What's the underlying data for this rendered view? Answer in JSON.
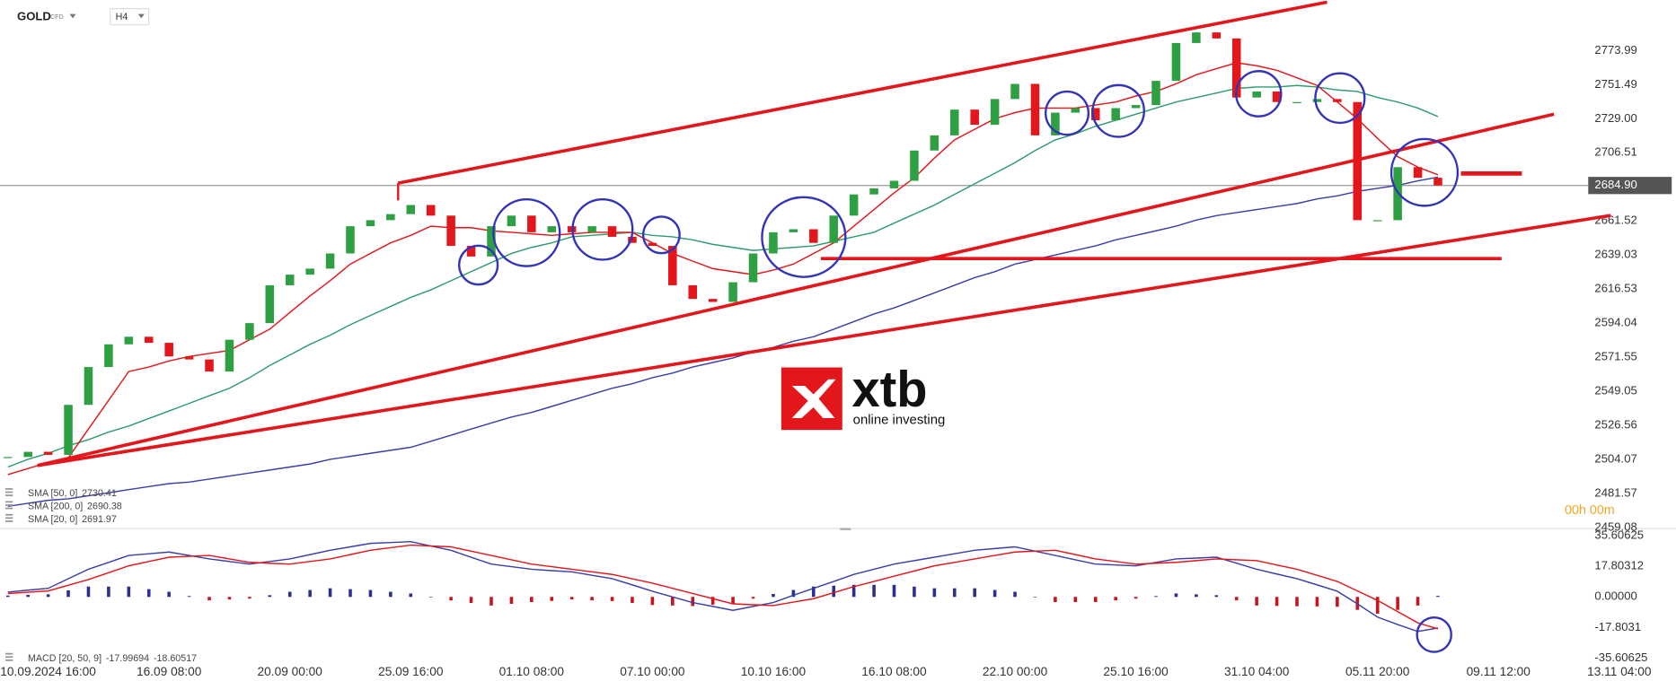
{
  "header": {
    "symbol": "GOLD",
    "instrument_type": "CFD",
    "timeframe": "H4"
  },
  "logo": {
    "brand": "xtb",
    "tagline": "online investing"
  },
  "countdown": "00h 00m",
  "chart_data": {
    "type": "candlestick",
    "up_color": "#2ea043",
    "down_color": "#e3161b",
    "categories": [
      null,
      null,
      "10.09.2024 16:00",
      null,
      null,
      null,
      null,
      null,
      "16.09 08:00",
      null,
      null,
      null,
      null,
      null,
      "20.09 00:00",
      null,
      null,
      null,
      null,
      null,
      "25.09 16:00",
      null,
      null,
      null,
      null,
      null,
      "01.10 08:00",
      null,
      null,
      null,
      null,
      null,
      "07.10 00:00",
      null,
      null,
      null,
      null,
      null,
      "10.10 16:00",
      null,
      null,
      null,
      null,
      null,
      "16.10 08:00",
      null,
      null,
      null,
      null,
      null,
      "22.10 00:00",
      null,
      null,
      null,
      null,
      null,
      "25.10 16:00",
      null,
      null,
      null,
      null,
      null,
      "31.10 04:00",
      null,
      null,
      null,
      null,
      null,
      "05.11 20:00",
      null,
      null,
      null,
      null,
      null,
      "09.11 12:00",
      null,
      null,
      null,
      null,
      null,
      "13.11 04:00"
    ],
    "values": [
      2505.6,
      2509,
      2507,
      2540,
      2565,
      2580,
      2585,
      2581,
      2572,
      2570,
      2562,
      2583,
      2594,
      2619,
      2626,
      2630,
      2640,
      2658,
      2662,
      2666,
      2672,
      2665,
      2645,
      2638,
      2658,
      2665,
      2654,
      2658,
      2654,
      2658,
      2651,
      2647,
      2645,
      2619,
      2610,
      2608,
      2621,
      2640,
      2654,
      2656,
      2647,
      2665,
      2679,
      2683,
      2688,
      2708,
      2718,
      2735,
      2725,
      2742,
      2752,
      2718,
      2733,
      2736,
      2728,
      2736,
      2738,
      2754,
      2779,
      2786,
      2782,
      2743,
      2747,
      2740,
      2740,
      2742,
      2740,
      2662,
      2662,
      2697,
      2690,
      2684.9,
      null,
      null,
      null,
      null,
      null,
      null,
      null,
      null,
      null
    ],
    "ylim": [
      2458.7,
      2807.4
    ],
    "yticks": [
      2773.99,
      2751.49,
      {
        "value": 2729,
        "label": "2729.00"
      },
      2706.51,
      2661.52,
      2639.03,
      2616.53,
      2594.04,
      2571.55,
      2549.05,
      2526.56,
      2504.07,
      2481.57,
      2459.08
    ],
    "last_price": {
      "value": 2684.9,
      "label": "2684.90"
    },
    "overlays": [
      {
        "name": "SMA [50, 0]",
        "color": "#2e9b6e",
        "values": [
          2499,
          2504,
          2508,
          2513,
          2517,
          2522,
          2526,
          2531,
          2536,
          2541,
          2546,
          2551,
          2558,
          2566,
          2573,
          2580,
          2586,
          2593,
          2599,
          2605,
          2611,
          2616,
          2622,
          2628,
          2634,
          2640,
          2644,
          2647,
          2651,
          2652,
          2653,
          2654,
          2652,
          2651,
          2649,
          2646,
          2644,
          2642,
          2643,
          2644,
          2645,
          2648,
          2651,
          2654,
          2660,
          2666,
          2672,
          2679,
          2686,
          2693,
          2700,
          2708,
          2715,
          2719,
          2724,
          2728,
          2732,
          2736,
          2740,
          2743,
          2746,
          2749,
          2750,
          2750,
          2751,
          2750,
          2748,
          2747,
          2743,
          2740,
          2736,
          2730.41,
          null,
          null,
          null,
          null,
          null,
          null,
          null,
          null,
          null
        ]
      },
      {
        "name": "SMA [200, 0]",
        "color": "#3a3fa8",
        "values": [
          2473,
          2475,
          2477,
          2478,
          2480,
          2482,
          2484,
          2486,
          2488,
          2489,
          2491,
          2493,
          2495,
          2497,
          2499,
          2501,
          2504,
          2506,
          2508,
          2510,
          2512,
          2516,
          2520,
          2524,
          2528,
          2532,
          2535,
          2539,
          2543,
          2547,
          2551,
          2554,
          2558,
          2561,
          2565,
          2568,
          2571,
          2575,
          2578,
          2582,
          2585,
          2590,
          2595,
          2600,
          2604,
          2609,
          2614,
          2619,
          2624,
          2628,
          2633,
          2636,
          2639,
          2642,
          2645,
          2649,
          2652,
          2655,
          2658,
          2662,
          2665,
          2667,
          2669,
          2671,
          2673,
          2676,
          2678,
          2681,
          2683,
          2685,
          2688,
          2690.38,
          null,
          null,
          null,
          null,
          null,
          null,
          null,
          null,
          null
        ]
      },
      {
        "name": "SMA [20, 0]",
        "color": "#e3161b",
        "values": [
          2494,
          2498,
          2502,
          2505,
          2524,
          2543,
          2562,
          2565,
          2569,
          2572,
          2574,
          2576,
          2583,
          2590,
          2601,
          2612,
          2622,
          2633,
          2640,
          2647,
          2652,
          2658,
          2657,
          2657,
          2655,
          2654,
          2653,
          2652,
          2653,
          2654,
          2654,
          2654,
          2647,
          2640,
          2635,
          2630,
          2628,
          2626,
          2629,
          2633,
          2640,
          2647,
          2658,
          2669,
          2680,
          2690,
          2703,
          2715,
          2722,
          2729,
          2733,
          2736,
          2736,
          2736,
          2738,
          2740,
          2744,
          2747,
          2752,
          2758,
          2762,
          2766,
          2764,
          2761,
          2756,
          2751,
          2740,
          2729,
          2716,
          2704,
          2697,
          2691.97,
          null,
          null,
          null,
          null,
          null,
          null,
          null,
          null,
          null
        ]
      }
    ],
    "indicator": {
      "type": "macd",
      "name": "MACD [20, 50, 9]",
      "ylim": [
        -40,
        38.7
      ],
      "yticks": [
        35.60625,
        17.80312,
        {
          "value": 0,
          "label": "0.00000"
        },
        -17.8031,
        -35.60625
      ],
      "series": [
        {
          "color": "#3a3fa8",
          "values": [
            2.8,
            3.9,
            5,
            10.5,
            16,
            20,
            24,
            25,
            26,
            24,
            22,
            20.5,
            19,
            20.5,
            22,
            24.5,
            27,
            29,
            31,
            31.5,
            32,
            29.5,
            27,
            23,
            19,
            17.5,
            16,
            15.2,
            14.5,
            12.5,
            10.6,
            7,
            3.3,
            0,
            -3.3,
            -5.5,
            -7.8,
            -5.5,
            -3.3,
            1,
            5,
            9,
            13,
            16,
            19,
            21,
            23,
            25,
            27,
            28,
            29,
            26.5,
            24,
            21.5,
            19,
            18.5,
            18,
            20,
            22,
            22.5,
            23,
            19.5,
            16,
            13.3,
            10.6,
            7,
            3.3,
            -4,
            -11.7,
            -16,
            -20,
            -17.99694,
            null,
            null,
            null,
            null,
            null,
            null,
            null,
            null,
            null
          ]
        },
        {
          "color": "#e3161b",
          "values": [
            2,
            2.7,
            3.5,
            6.7,
            10,
            14,
            18,
            20.5,
            23,
            23.5,
            24,
            22,
            20,
            19.5,
            19,
            20.5,
            22,
            24.5,
            27,
            28.5,
            30,
            29.5,
            29,
            26.5,
            24,
            21.5,
            19,
            17.5,
            16,
            14.5,
            13,
            10.5,
            8,
            5,
            2,
            -1,
            -4,
            -4.5,
            -5,
            -3,
            -1,
            2.5,
            6,
            9,
            12,
            15,
            18,
            20,
            22,
            24,
            26,
            26.5,
            27,
            24.5,
            22,
            20.5,
            19,
            19.5,
            20,
            21,
            22,
            21.5,
            21,
            18.5,
            16,
            12.5,
            9,
            3.5,
            -2,
            -8.5,
            -15,
            -18.60517,
            null,
            null,
            null,
            null,
            null,
            null,
            null,
            null,
            null
          ]
        }
      ],
      "histogram": {
        "up_color": "#2b2f8f",
        "down_color": "#c8141a",
        "values": [
          0.8,
          1.2,
          1.5,
          3.8,
          6,
          6,
          6,
          4.5,
          3,
          0.5,
          -2,
          -1.5,
          -1,
          1,
          3,
          4,
          5,
          4.5,
          4,
          3,
          2,
          0,
          -2,
          -3.5,
          -5,
          -4,
          -3,
          -2.3,
          -1.5,
          -2,
          -2.4,
          -3.5,
          -4.7,
          -5,
          -5.3,
          -4.5,
          -3.8,
          -1,
          1.7,
          4,
          6,
          6.5,
          7,
          7,
          7,
          6,
          5,
          5,
          5,
          4,
          3,
          0,
          -3,
          -3,
          -3,
          -2,
          -1,
          0.5,
          2,
          1.5,
          1,
          -2,
          -5,
          -5.2,
          -5.4,
          -5.5,
          -5.7,
          -7.5,
          -9.7,
          -7.5,
          -5,
          0.6,
          null,
          null,
          null,
          null,
          null,
          null,
          null,
          null,
          null
        ]
      }
    }
  }
}
